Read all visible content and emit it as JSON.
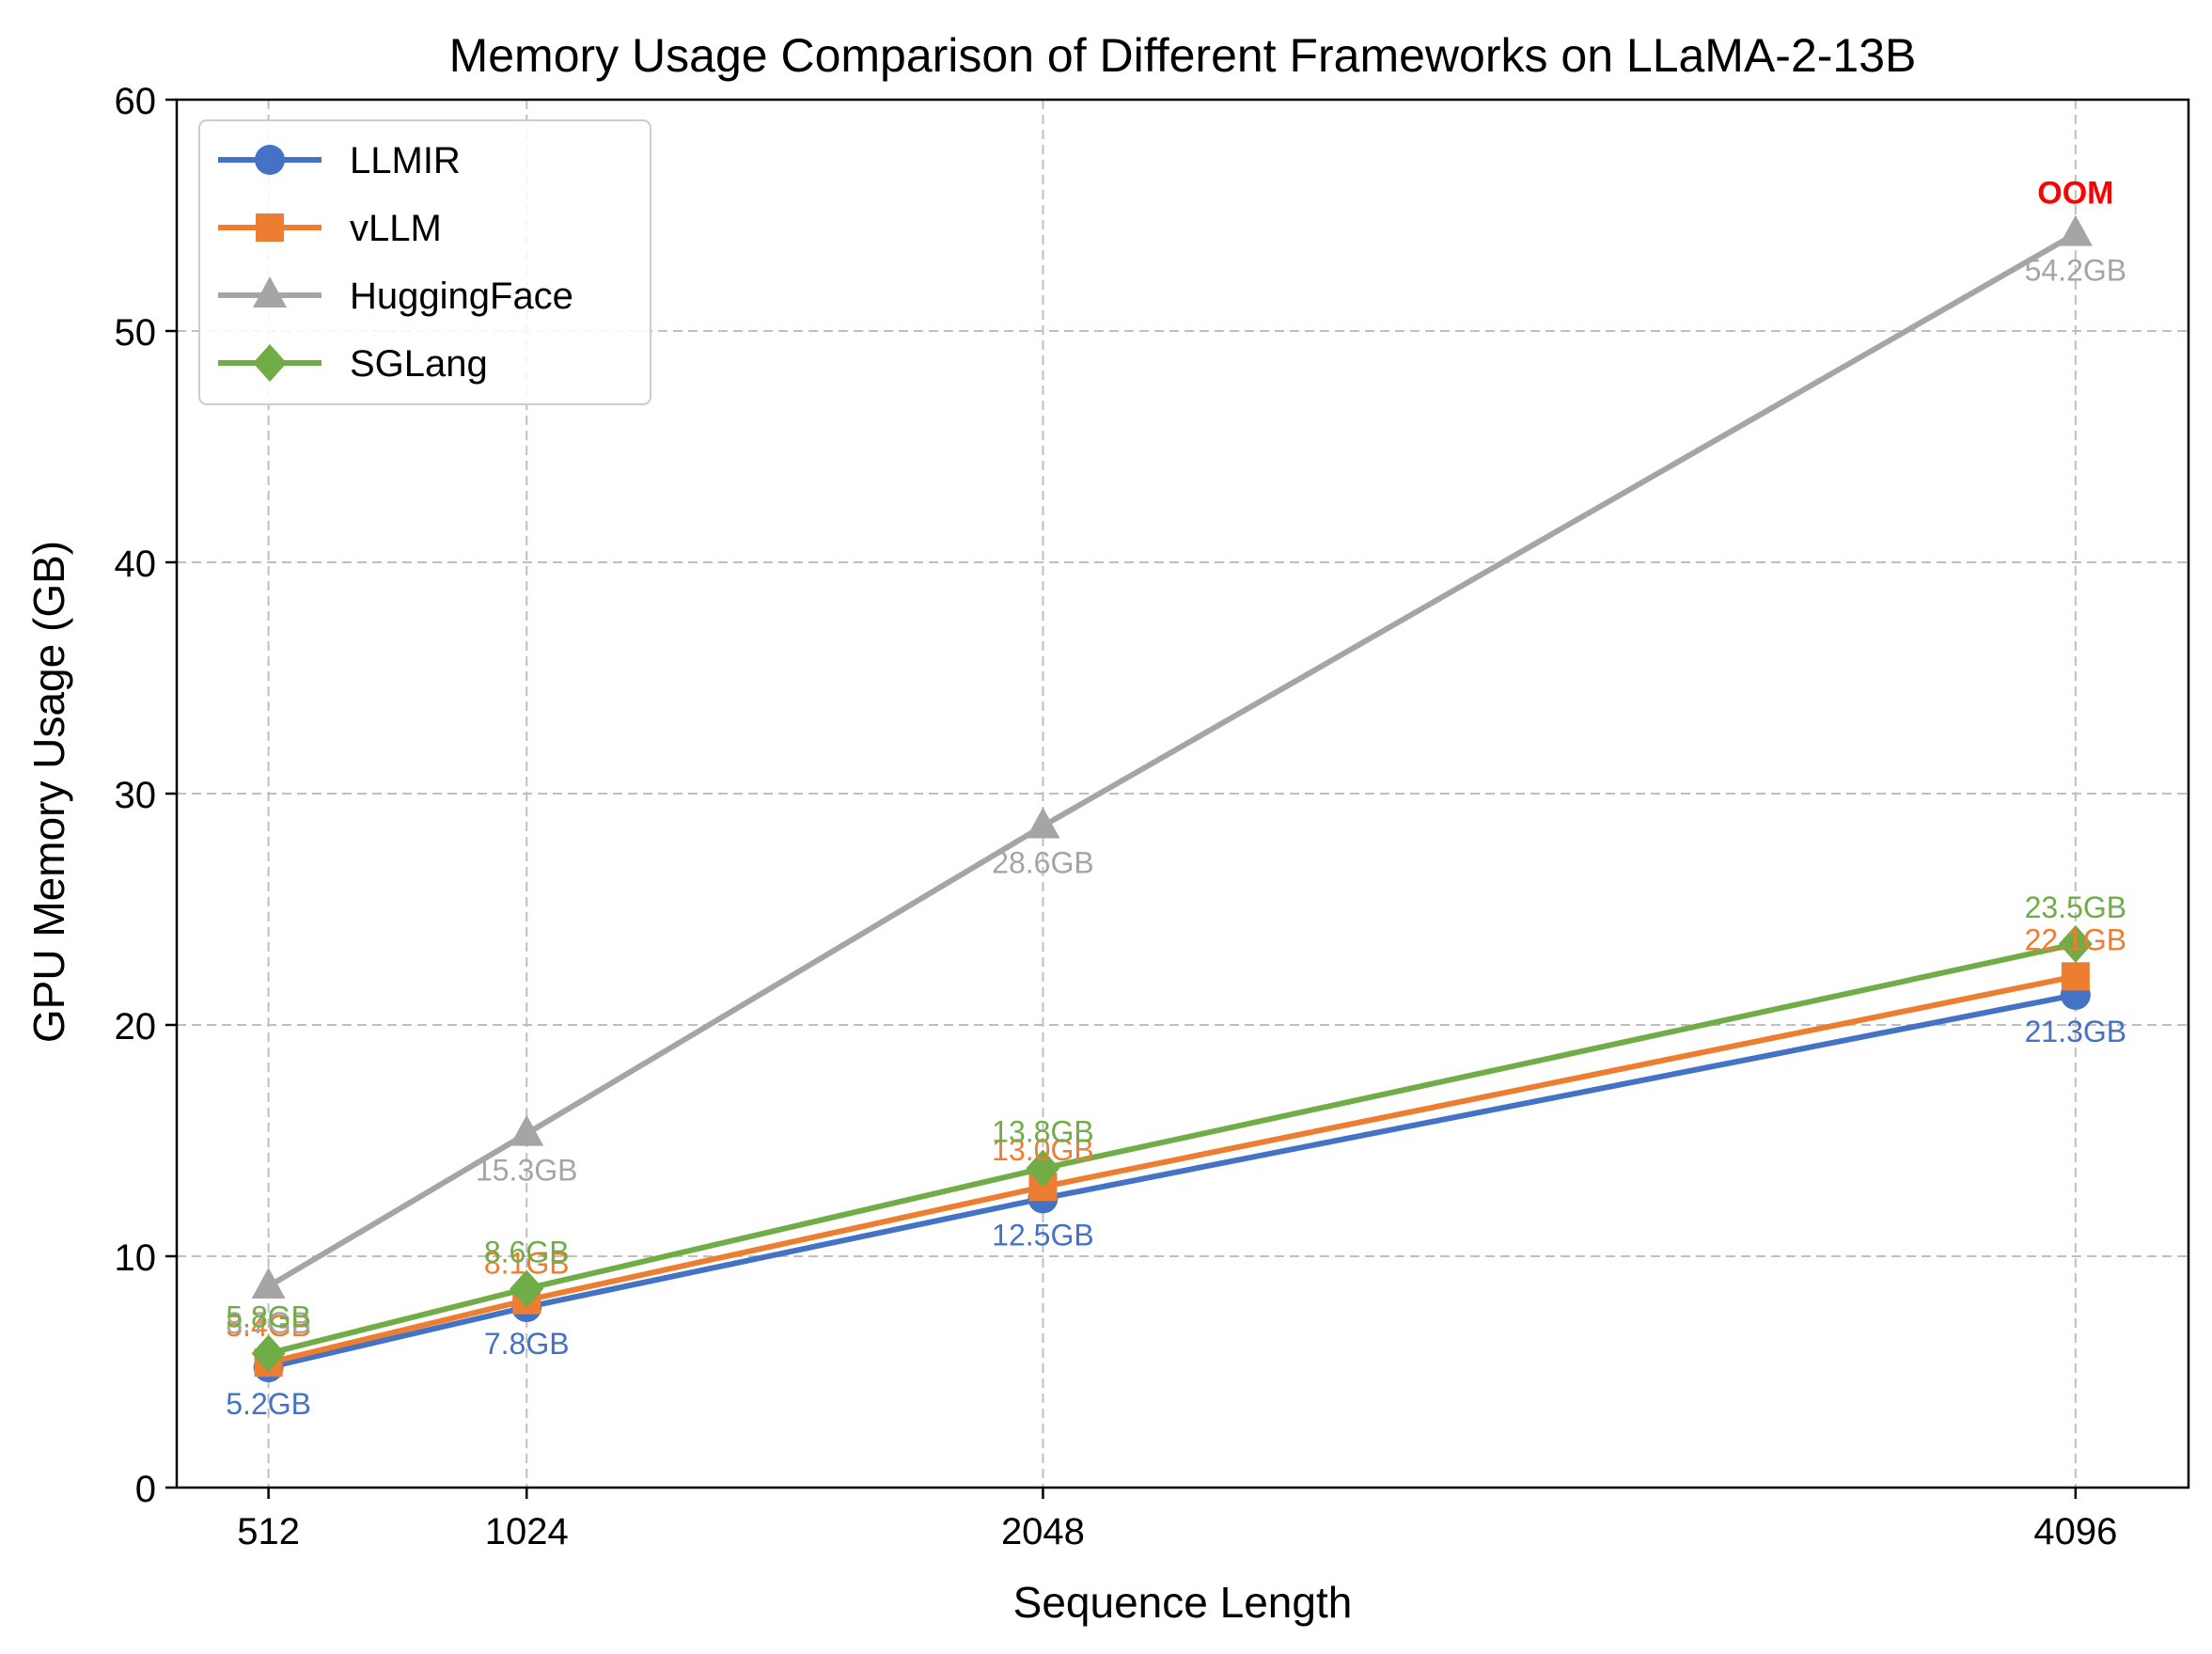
{
  "chart_data": {
    "type": "line",
    "title": "Memory Usage Comparison of Different Frameworks on LLaMA-2-13B",
    "xlabel": "Sequence Length",
    "ylabel": "GPU Memory Usage (GB)",
    "x": [
      512,
      1024,
      2048,
      4096
    ],
    "x_tick_labels": [
      "512",
      "1024",
      "2048",
      "4096"
    ],
    "xlim": [
      330,
      4320
    ],
    "ylim": [
      0,
      60
    ],
    "y_ticks": [
      0,
      10,
      20,
      30,
      40,
      50,
      60
    ],
    "grid": true,
    "legend_position": "top-left",
    "value_label_suffix": "GB",
    "series": [
      {
        "name": "LLMIR",
        "values": [
          5.2,
          7.8,
          12.5,
          21.3
        ],
        "color": "#4472C4",
        "marker": "circle",
        "label_position": "below"
      },
      {
        "name": "vLLM",
        "values": [
          5.4,
          8.1,
          13.0,
          22.1
        ],
        "color": "#ED7D31",
        "marker": "square",
        "label_position": "above"
      },
      {
        "name": "HuggingFace",
        "values": [
          8.7,
          15.3,
          28.6,
          54.2
        ],
        "color": "#A5A5A5",
        "marker": "triangle",
        "label_position": "below"
      },
      {
        "name": "SGLang",
        "values": [
          5.8,
          8.6,
          13.8,
          23.5
        ],
        "color": "#70AD47",
        "marker": "diamond",
        "label_position": "above"
      }
    ],
    "annotations": [
      {
        "text": "OOM",
        "x": 4096,
        "y": 56,
        "color": "#FF0000"
      }
    ]
  }
}
